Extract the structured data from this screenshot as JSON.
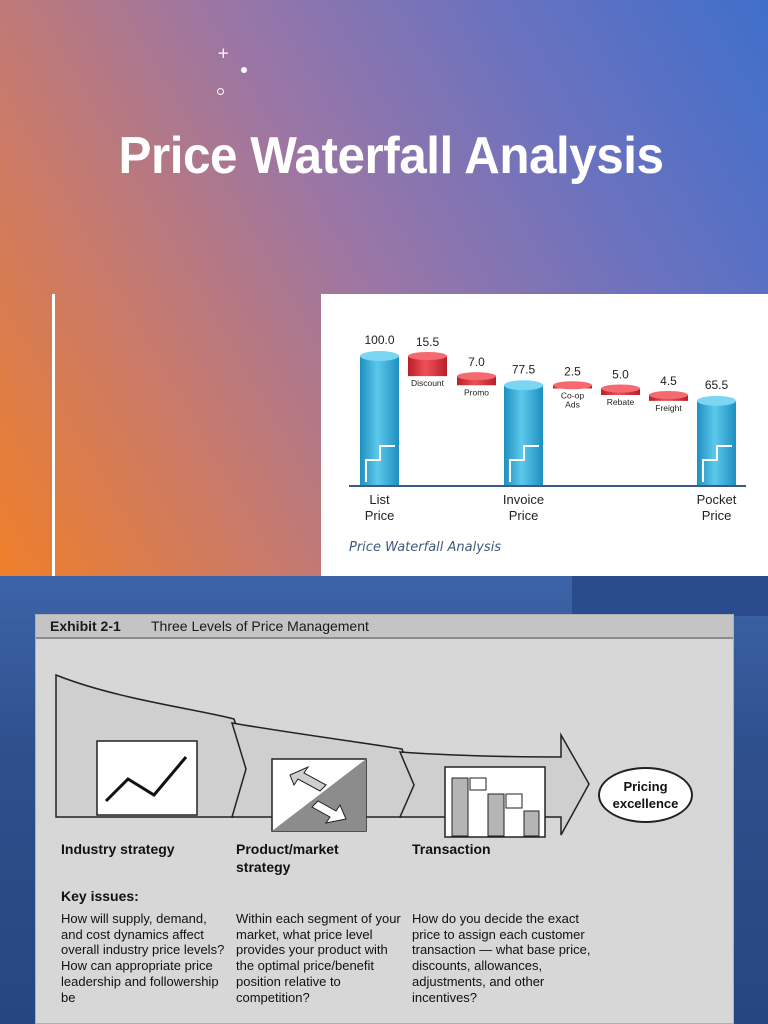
{
  "slide_top": {
    "title": "Price Waterfall Analysis",
    "deco_plus": "+",
    "waterfall_caption": "Price Waterfall Analysis"
  },
  "chart_data": {
    "type": "waterfall",
    "bars": [
      {
        "kind": "total",
        "value": 100.0,
        "label": "100.0",
        "axis_label": [
          "List",
          "Price"
        ],
        "side_label": ""
      },
      {
        "kind": "decrease",
        "value": 15.5,
        "label": "15.5",
        "axis_label": [],
        "side_label": "Discount"
      },
      {
        "kind": "decrease",
        "value": 7.0,
        "label": "7.0",
        "axis_label": [],
        "side_label": "Promo"
      },
      {
        "kind": "total",
        "value": 77.5,
        "label": "77.5",
        "axis_label": [
          "Invoice",
          "Price"
        ],
        "side_label": ""
      },
      {
        "kind": "decrease",
        "value": 2.5,
        "label": "2.5",
        "axis_label": [],
        "side_label": "Co-op Ads"
      },
      {
        "kind": "decrease",
        "value": 5.0,
        "label": "5.0",
        "axis_label": [],
        "side_label": "Rebate"
      },
      {
        "kind": "decrease",
        "value": 4.5,
        "label": "4.5",
        "axis_label": [],
        "side_label": "Freight"
      },
      {
        "kind": "total",
        "value": 65.5,
        "label": "65.5",
        "axis_label": [
          "Pocket",
          "Price"
        ],
        "side_label": ""
      }
    ],
    "colors": {
      "total": "#3aaed8",
      "decrease": "#d8323c",
      "axis": "#3a5a8a"
    }
  },
  "exhibit": {
    "label": "Exhibit 2-1",
    "title": "Three Levels of Price Management",
    "pricing_excellence": "Pricing excellence",
    "columns": [
      {
        "heading": "Industry strategy",
        "body": "How will supply, demand, and cost dynamics affect overall industry price levels? How can appropriate price leadership and followership be"
      },
      {
        "heading": "Product/market strategy",
        "body": "Within each segment of your market, what price level provides your product with the optimal price/benefit position relative to competition?"
      },
      {
        "heading": "Transaction",
        "body": "How do you decide the exact price to assign each customer transaction — what base price, discounts, allowances, adjustments, and other incentives?"
      }
    ],
    "key_issues": "Key issues:",
    "icons": [
      "line-trend-icon",
      "exchange-arrows-icon",
      "price-bars-icon"
    ]
  }
}
